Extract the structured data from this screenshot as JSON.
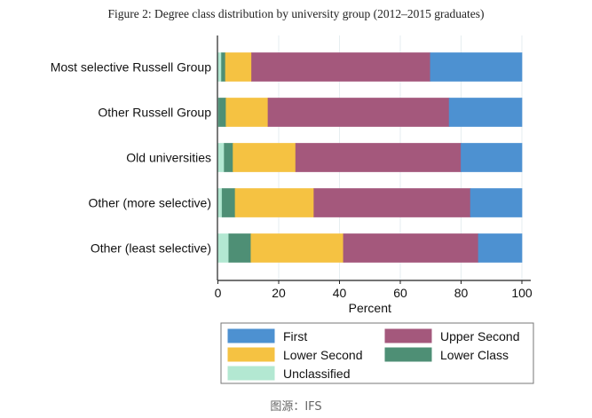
{
  "chart_data": {
    "type": "bar",
    "orientation": "horizontal",
    "stacked": true,
    "title": "Figure 2: Degree class distribution by university group (2012–2015 graduates)",
    "xlabel": "Percent",
    "ylabel": "",
    "xlim": [
      0,
      100
    ],
    "xticks": [
      0,
      20,
      40,
      60,
      80,
      100
    ],
    "grid": true,
    "legend_position": "bottom",
    "categories": [
      "Most selective Russell Group",
      "Other Russell Group",
      "Old universities",
      "Other (more selective)",
      "Other (least selective)"
    ],
    "series": [
      {
        "name": "Unclassified",
        "color": "#b3e8d2",
        "values": [
          1.2,
          0.3,
          2.1,
          1.4,
          3.6
        ]
      },
      {
        "name": "Lower Class",
        "color": "#4e8f75",
        "values": [
          1.3,
          2.4,
          2.9,
          4.3,
          7.3
        ]
      },
      {
        "name": "Lower Second",
        "color": "#f5c242",
        "values": [
          8.6,
          13.8,
          20.6,
          25.9,
          30.4
        ]
      },
      {
        "name": "Upper Second",
        "color": "#a4587c",
        "values": [
          58.8,
          59.6,
          54.4,
          51.5,
          44.4
        ]
      },
      {
        "name": "First",
        "color": "#4d91d1",
        "values": [
          30.1,
          23.9,
          20.0,
          16.9,
          14.3
        ]
      }
    ],
    "legend_order": [
      "First",
      "Upper Second",
      "Lower Second",
      "Lower Class",
      "Unclassified"
    ]
  },
  "source": "图源：IFS"
}
